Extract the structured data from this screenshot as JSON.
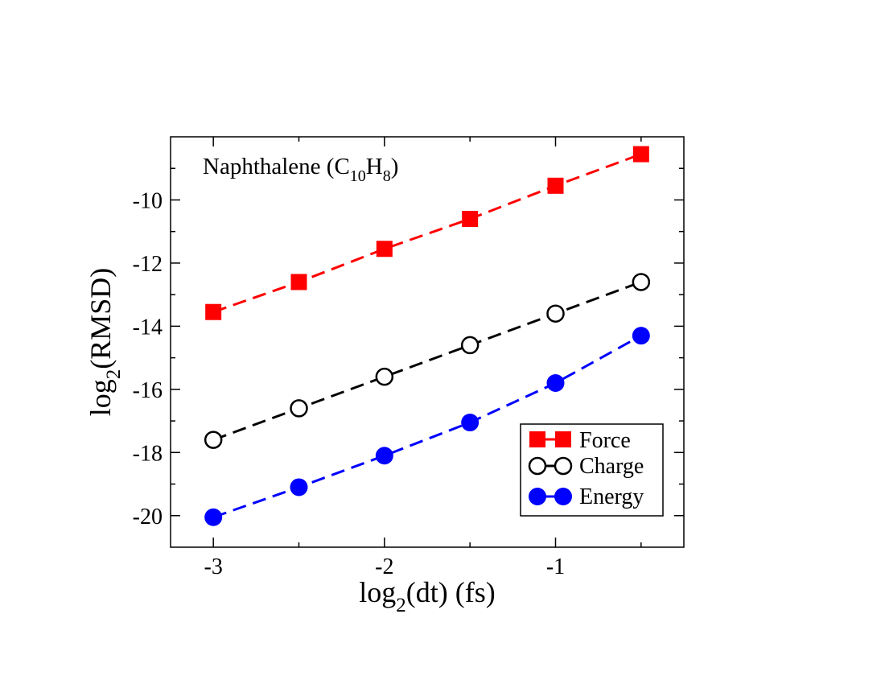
{
  "chart_data": {
    "type": "line",
    "annotation": {
      "main": "Naphthalene (C",
      "sub1": "10",
      "mid": "H",
      "sub2": "8",
      "end": ")"
    },
    "xlabel": {
      "pre": "log",
      "sub": "2",
      "post": "(dt) (fs)"
    },
    "ylabel": {
      "pre": "log",
      "sub": "2",
      "post": "(RMSD)"
    },
    "xlim": [
      -3.25,
      -0.25
    ],
    "ylim": [
      -21,
      -8
    ],
    "xticks": [
      -3,
      -2,
      -1
    ],
    "yticks": [
      -20,
      -18,
      -16,
      -14,
      -12,
      -10
    ],
    "x": [
      -3,
      -2.5,
      -2,
      -1.5,
      -1,
      -0.5
    ],
    "series": [
      {
        "name": "Force",
        "marker": "square-filled",
        "color": "#ff0000",
        "values": [
          -13.55,
          -12.6,
          -11.55,
          -10.6,
          -9.55,
          -8.55
        ]
      },
      {
        "name": "Charge",
        "marker": "circle-open",
        "color": "#000000",
        "values": [
          -17.6,
          -16.6,
          -15.6,
          -14.6,
          -13.6,
          -12.6
        ]
      },
      {
        "name": "Energy",
        "marker": "circle-filled",
        "color": "#0000ff",
        "values": [
          -20.05,
          -19.1,
          -18.1,
          -17.05,
          -15.8,
          -14.3
        ]
      }
    ],
    "legend_position": "bottom-right"
  }
}
